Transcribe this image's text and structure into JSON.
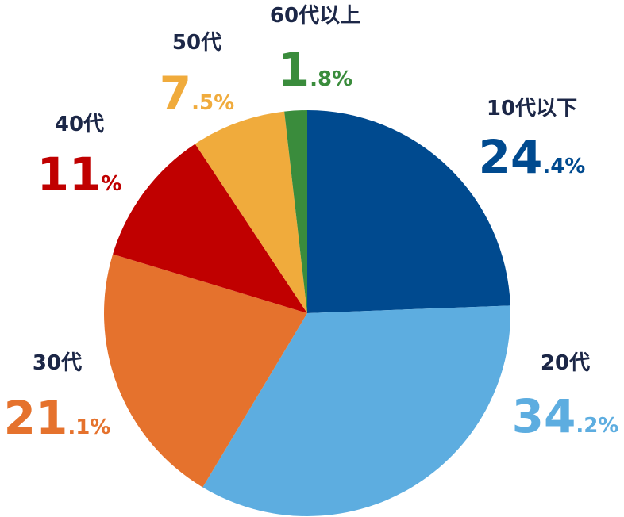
{
  "chart_data": {
    "type": "pie",
    "categories": [
      "10代以下",
      "20代",
      "30代",
      "40代",
      "50代",
      "60代以上"
    ],
    "values": [
      24.4,
      34.2,
      21.1,
      11,
      7.5,
      1.8
    ],
    "value_labels": [
      "24.4%",
      "34.2%",
      "21.1%",
      "11%",
      "7.5%",
      "1.8%"
    ],
    "colors": [
      "#004a8f",
      "#5dade0",
      "#e5722d",
      "#c00000",
      "#f0ab3c",
      "#3a8c3c"
    ]
  }
}
